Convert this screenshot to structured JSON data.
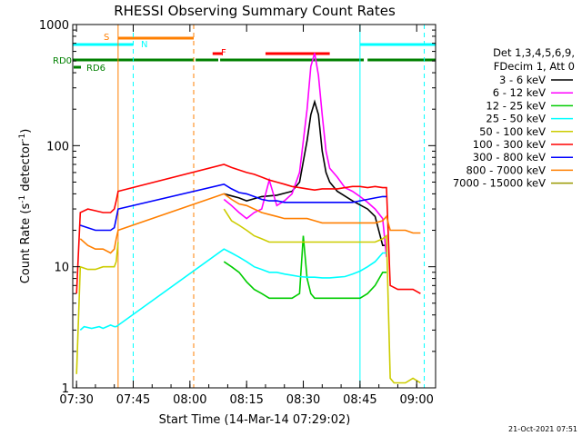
{
  "chart_data": {
    "type": "line",
    "title": "RHESSI Observing Summary Count Rates",
    "xlabel": "Start Time (14-Mar-14 07:29:02)",
    "ylabel_main": "Count Rate (s",
    "ylabel_exp1": "-1",
    "ylabel_mid": " detector",
    "ylabel_exp2": "-1",
    "ylabel_end": ")",
    "ylog": true,
    "ylim": [
      1,
      1000
    ],
    "xlim_minutes": [
      0,
      96
    ],
    "x_ticks": [
      {
        "min": 1,
        "label": "07:30"
      },
      {
        "min": 16,
        "label": "07:45"
      },
      {
        "min": 31,
        "label": "08:00"
      },
      {
        "min": 46,
        "label": "08:15"
      },
      {
        "min": 61,
        "label": "08:30"
      },
      {
        "min": 76,
        "label": "08:45"
      },
      {
        "min": 91,
        "label": "09:00"
      }
    ],
    "y_ticks": [
      {
        "val": 1,
        "label": "1"
      },
      {
        "val": 10,
        "label": "10"
      },
      {
        "val": 100,
        "label": "100"
      },
      {
        "val": 1000,
        "label": "1000"
      }
    ],
    "legend_header": [
      "Det 1,3,4,5,6,9,",
      "FDecim 1, Att 0"
    ],
    "series": [
      {
        "name": "3 - 6 keV",
        "color": "#000000",
        "x": [
          2,
          8,
          11,
          11.2,
          12,
          13,
          32,
          33,
          40,
          44,
          46,
          50,
          54,
          58,
          60,
          62,
          63,
          64,
          65,
          66,
          67,
          68,
          70,
          74,
          78,
          80,
          82,
          83
        ],
        "y": [
          null,
          null,
          null,
          null,
          null,
          null,
          null,
          null,
          40,
          37,
          35,
          38,
          39,
          42,
          50,
          110,
          180,
          230,
          180,
          90,
          60,
          50,
          42,
          35,
          30,
          26,
          15,
          15
        ]
      },
      {
        "name": "6 - 12 keV",
        "color": "#ff00ff",
        "x": [
          40,
          42,
          44,
          46,
          48,
          50,
          52,
          54,
          56,
          58,
          60,
          62,
          63,
          64,
          65,
          66,
          67,
          68,
          70,
          72,
          74,
          76,
          78,
          80,
          82,
          83
        ],
        "y": [
          36,
          32,
          28,
          25,
          28,
          30,
          52,
          32,
          35,
          40,
          60,
          200,
          450,
          580,
          380,
          180,
          90,
          65,
          55,
          45,
          42,
          38,
          34,
          30,
          25,
          12
        ]
      },
      {
        "name": "12 - 25 keV",
        "color": "#00cc00",
        "x": [
          40,
          42,
          44,
          46,
          48,
          50,
          52,
          54,
          56,
          58,
          60,
          61,
          62,
          63,
          64,
          66,
          68,
          70,
          72,
          74,
          76,
          78,
          80,
          82,
          83
        ],
        "y": [
          11,
          10,
          9,
          7.5,
          6.5,
          6,
          5.5,
          5.5,
          5.5,
          5.5,
          6,
          18,
          8,
          6,
          5.5,
          5.5,
          5.5,
          5.5,
          5.5,
          5.5,
          5.5,
          6,
          7,
          9,
          9
        ]
      },
      {
        "name": "25 - 50 keV",
        "color": "#00ffff",
        "x": [
          1,
          2,
          3,
          5,
          7,
          8,
          10,
          11,
          11.5,
          40,
          42,
          44,
          46,
          48,
          50,
          52,
          54,
          56,
          58,
          60,
          62,
          64,
          66,
          68,
          70,
          72,
          74,
          76,
          78,
          80,
          82,
          83
        ],
        "y": [
          null,
          3,
          3.2,
          3.1,
          3.2,
          3.1,
          3.3,
          3.2,
          3.2,
          14,
          13,
          12,
          11,
          10,
          9.5,
          9,
          9,
          8.7,
          8.5,
          8.3,
          8.2,
          8.2,
          8.1,
          8.1,
          8.2,
          8.3,
          8.7,
          9.2,
          10,
          11,
          13,
          13
        ]
      },
      {
        "name": "50 - 100 keV",
        "color": "#cccc00",
        "x": [
          1,
          2,
          4,
          6,
          8,
          10,
          11,
          11.5,
          12,
          32,
          40,
          42,
          44,
          46,
          48,
          50,
          52,
          54,
          56,
          58,
          60,
          62,
          64,
          66,
          68,
          70,
          72,
          74,
          76,
          78,
          80,
          82,
          83,
          84,
          85,
          88,
          90,
          92
        ],
        "y": [
          1.3,
          10,
          9.5,
          9.5,
          10,
          10,
          10,
          11,
          16,
          null,
          30,
          24,
          22,
          20,
          18,
          17,
          16,
          16,
          16,
          16,
          16,
          16,
          16,
          16,
          16,
          16,
          16,
          16,
          16,
          16,
          16,
          17,
          18,
          1.2,
          1.1,
          1.1,
          1.2,
          1.1
        ]
      },
      {
        "name": "100 - 300 keV",
        "color": "#ff0000",
        "x": [
          1,
          2,
          4,
          6,
          8,
          10,
          11,
          11.5,
          12,
          40,
          42,
          44,
          46,
          48,
          50,
          52,
          54,
          56,
          58,
          60,
          62,
          64,
          66,
          68,
          70,
          72,
          74,
          76,
          78,
          80,
          82,
          83,
          84,
          86,
          88,
          90,
          92
        ],
        "y": [
          6,
          28,
          30,
          29,
          28,
          28,
          30,
          35,
          42,
          70,
          66,
          63,
          60,
          58,
          55,
          52,
          50,
          48,
          46,
          45,
          44,
          43,
          44,
          44,
          44,
          45,
          46,
          46,
          45,
          46,
          45,
          45,
          7,
          6.5,
          6.5,
          6.5,
          6
        ]
      },
      {
        "name": "300 - 800 keV",
        "color": "#0000ff",
        "x": [
          1,
          2,
          4,
          6,
          8,
          10,
          11,
          11.5,
          12,
          40,
          42,
          44,
          46,
          48,
          50,
          52,
          54,
          56,
          58,
          60,
          62,
          64,
          66,
          68,
          70,
          72,
          74,
          76,
          78,
          80,
          82,
          83
        ],
        "y": [
          null,
          22,
          21,
          20,
          20,
          20,
          21,
          25,
          30,
          48,
          44,
          41,
          40,
          38,
          36,
          35,
          35,
          34,
          34,
          34,
          34,
          34,
          34,
          34,
          34,
          34,
          34,
          35,
          36,
          37,
          38,
          38
        ]
      },
      {
        "name": "800 - 7000 keV",
        "color": "#ff7f00",
        "x": [
          1,
          2,
          4,
          6,
          8,
          10,
          11,
          11.5,
          12,
          40,
          42,
          44,
          46,
          48,
          50,
          52,
          54,
          56,
          58,
          60,
          62,
          64,
          66,
          68,
          70,
          72,
          74,
          76,
          78,
          80,
          82,
          83,
          84,
          86,
          88,
          90,
          92
        ],
        "y": [
          null,
          17,
          15,
          14,
          14,
          13,
          14,
          17,
          20,
          40,
          36,
          33,
          32,
          30,
          28,
          27,
          26,
          25,
          25,
          25,
          25,
          24,
          23,
          23,
          23,
          23,
          23,
          23,
          23,
          23,
          24,
          26,
          20,
          20,
          20,
          19,
          19
        ]
      },
      {
        "name": "7000 - 15000 keV",
        "color": "#999900",
        "x": [],
        "y": []
      }
    ],
    "flags": {
      "S": {
        "label": "S",
        "color": "#ff7f00",
        "segments": [
          [
            12,
            32
          ]
        ]
      },
      "N": {
        "label": "N",
        "color": "#00ffff",
        "segments": [
          [
            0,
            16
          ],
          [
            76,
            96
          ]
        ]
      },
      "F": {
        "label": "F",
        "color": "#ff0000",
        "segments": [
          [
            37,
            39.5
          ],
          [
            51,
            68
          ]
        ]
      },
      "RD0": {
        "label": "RD0",
        "color": "#008000",
        "segments": [
          [
            0,
            32
          ],
          [
            32.5,
            38.5
          ],
          [
            39,
            77
          ],
          [
            78,
            96
          ]
        ]
      },
      "RD6": {
        "label": "RD6",
        "color": "#008000",
        "segments": []
      }
    },
    "vlines": [
      {
        "min": 0,
        "color": "#00ffff",
        "dashed": false
      },
      {
        "min": 12,
        "color": "#ff7f00",
        "dashed": false
      },
      {
        "min": 16,
        "color": "#00ffff",
        "dashed": true
      },
      {
        "min": 32,
        "color": "#ff7f00",
        "dashed": true
      },
      {
        "min": 76,
        "color": "#00ffff",
        "dashed": false
      },
      {
        "min": 93,
        "color": "#00ffff",
        "dashed": true
      }
    ],
    "grid": false,
    "legend_placement": "right"
  },
  "footer_date": "21-Oct-2021 07:51"
}
